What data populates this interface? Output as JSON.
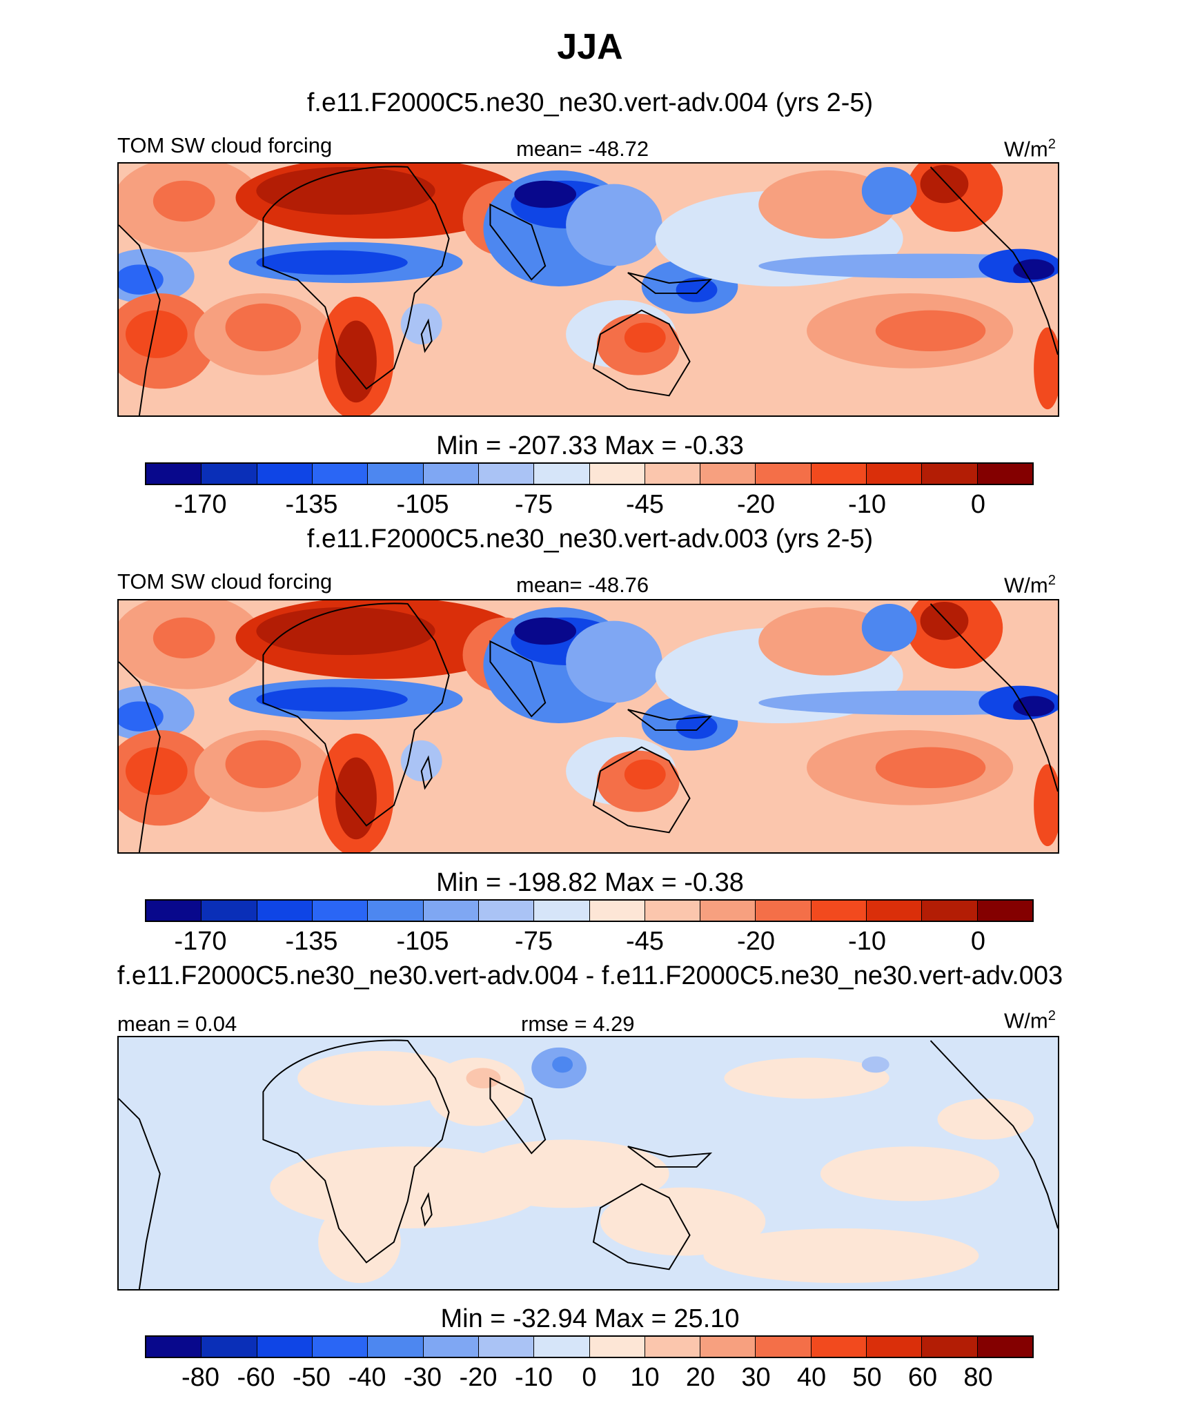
{
  "title": "JJA",
  "colors": {
    "full_field": [
      "#08088c",
      "#0a2fb8",
      "#0f45e6",
      "#2a66f5",
      "#4d87f0",
      "#7fa7f3",
      "#aac3f5",
      "#d6e5f9",
      "#fde6d6",
      "#fbc6ad",
      "#f7a07f",
      "#f46f48",
      "#f24a1e",
      "#da2f0a",
      "#b31d05",
      "#840000"
    ],
    "difference": [
      "#08088c",
      "#0a2fb8",
      "#0f45e6",
      "#2a66f5",
      "#4d87f0",
      "#7fa7f3",
      "#aac3f5",
      "#d6e5f9",
      "#fde6d6",
      "#fbc6ad",
      "#f7a07f",
      "#f46f48",
      "#f24a1e",
      "#da2f0a",
      "#b31d05",
      "#840000"
    ]
  },
  "panels": [
    {
      "case_title": "f.e11.F2000C5.ne30_ne30.vert-adv.004 (yrs 2-5)",
      "variable": "TOM SW cloud forcing",
      "center_stat": "mean= -48.72",
      "units": "W/m",
      "units_sup": "2",
      "minmax": "Min = -207.33 Max =  -0.33",
      "ticks": [
        "-170",
        "-135",
        "-105",
        "-75",
        "-45",
        "-20",
        "-10",
        "0"
      ]
    },
    {
      "case_title": "f.e11.F2000C5.ne30_ne30.vert-adv.003 (yrs 2-5)",
      "variable": "TOM SW cloud forcing",
      "center_stat": "mean= -48.76",
      "units": "W/m",
      "units_sup": "2",
      "minmax": "Min = -198.82 Max =  -0.38",
      "ticks": [
        "-170",
        "-135",
        "-105",
        "-75",
        "-45",
        "-20",
        "-10",
        "0"
      ]
    },
    {
      "case_title": "f.e11.F2000C5.ne30_ne30.vert-adv.004 - f.e11.F2000C5.ne30_ne30.vert-adv.003",
      "left_stat": "mean =   0.04",
      "center_stat": "rmse =   4.29",
      "units": "W/m",
      "units_sup": "2",
      "minmax": "Min = -32.94 Max =  25.10",
      "ticks": [
        "-80",
        "-60",
        "-50",
        "-40",
        "-30",
        "-20",
        "-10",
        "0",
        "10",
        "20",
        "30",
        "40",
        "50",
        "60",
        "80"
      ]
    }
  ]
}
